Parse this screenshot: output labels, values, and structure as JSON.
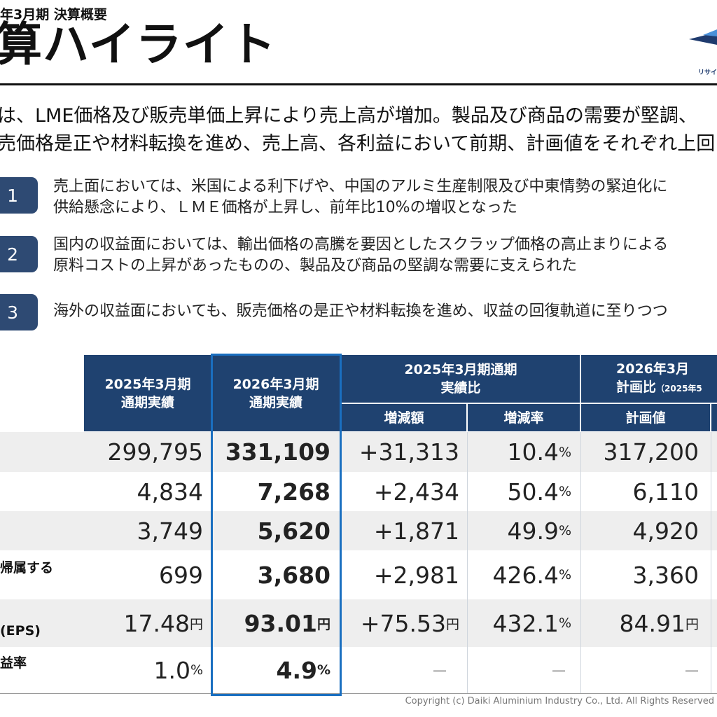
{
  "header": {
    "subtitle": "年3月期 決算概要",
    "title": "算ハイライト",
    "logo_text": "リサイ"
  },
  "summary": {
    "line1": "は、LME価格及び販売単価上昇により売上高が増加。製品及び商品の需要が堅調、",
    "line2": "売価格是正や材料転換を進め、売上高、各利益において前期、計画値をそれぞれ上回"
  },
  "points": [
    {
      "num": "1",
      "line1": "売上面においては、米国による利下げや、中国のアルミ生産制限及び中東情勢の緊迫化に",
      "line2": "供給懸念により、ＬＭＥ価格が上昇し、前年比10%の増収となった"
    },
    {
      "num": "2",
      "line1": "国内の収益面においては、輸出価格の高騰を要因としたスクラップ価格の高止まりによる",
      "line2": "原料コストの上昇があったものの、製品及び商品の堅調な需要に支えられた"
    },
    {
      "num": "3",
      "line1": "海外の収益面においても、販売価格の是正や材料転換を進め、収益の回復軌道に至りつつ",
      "line2": ""
    }
  ],
  "table": {
    "headers": {
      "fy2025": [
        "2025年3月期",
        "通期実績"
      ],
      "fy2026": [
        "2026年3月期",
        "通期実績"
      ],
      "yoy_group": [
        "2025年3月期通期",
        "実績比"
      ],
      "yoy_diff": "増減額",
      "yoy_rate": "増減率",
      "plan_group": [
        "2026年3月",
        "計画比"
      ],
      "plan_note": "（2025年5",
      "plan_value": "計画値"
    },
    "row_labels": [
      "",
      "",
      "",
      "帰属する",
      "(EPS)",
      "益率"
    ],
    "rows": [
      {
        "fy2025": "299,795",
        "fy2026": "331,109",
        "diff": "+31,313",
        "rate": "10.4",
        "rate_unit": "%",
        "plan": "317,200"
      },
      {
        "fy2025": "4,834",
        "fy2026": "7,268",
        "diff": "+2,434",
        "rate": "50.4",
        "rate_unit": "%",
        "plan": "6,110"
      },
      {
        "fy2025": "3,749",
        "fy2026": "5,620",
        "diff": "+1,871",
        "rate": "49.9",
        "rate_unit": "%",
        "plan": "4,920"
      },
      {
        "fy2025": "699",
        "fy2026": "3,680",
        "diff": "+2,981",
        "rate": "426.4",
        "rate_unit": "%",
        "plan": "3,360"
      },
      {
        "fy2025": "17.48",
        "fy2025_unit": "円",
        "fy2026": "93.01",
        "fy2026_unit": "円",
        "diff": "+75.53",
        "diff_unit": "円",
        "rate": "432.1",
        "rate_unit": "%",
        "plan": "84.91",
        "plan_unit": "円"
      },
      {
        "fy2025": "1.0",
        "fy2025_unit": "%",
        "fy2026": "4.9",
        "fy2026_unit": "%",
        "diff": "—",
        "rate": "—",
        "plan": "—"
      }
    ]
  },
  "footer": {
    "copyright": "Copyright (c) Daiki Aluminium Industry Co., Ltd. All Rights Reserved"
  },
  "colors": {
    "header_bg": "#1f4270",
    "highlight_border": "#1a6fc0",
    "badge_bg": "#2e4a73"
  }
}
